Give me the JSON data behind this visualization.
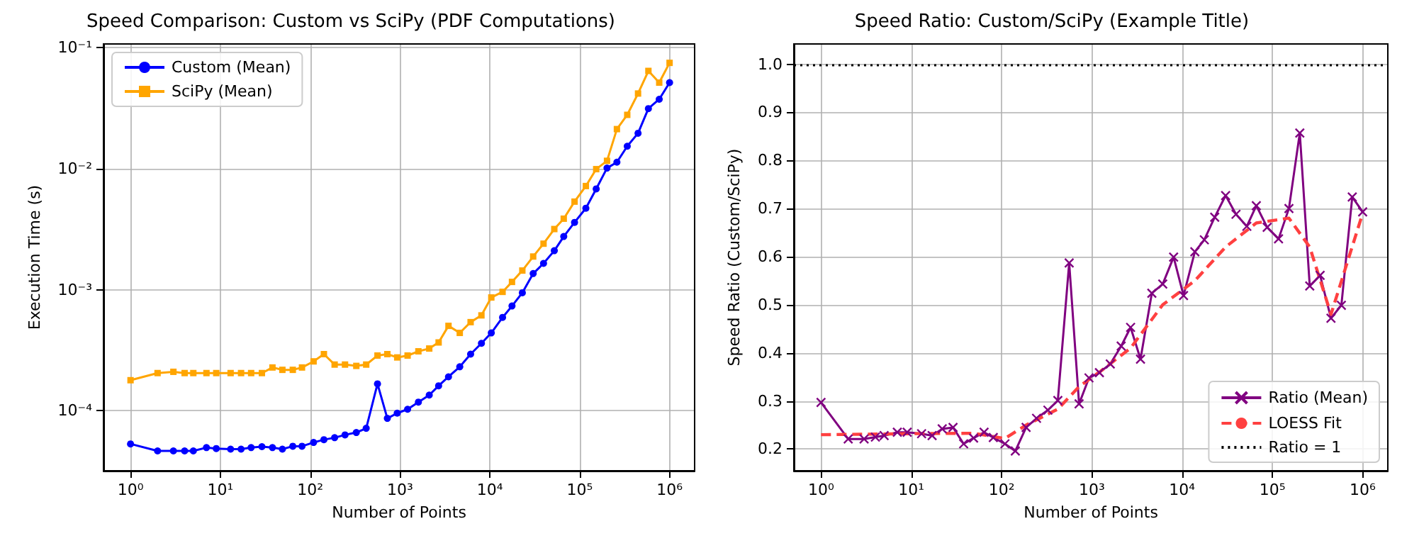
{
  "chart_data": [
    {
      "type": "line",
      "title": "Speed Comparison: Custom vs SciPy (PDF Computations)",
      "xlabel": "Number of Points",
      "ylabel": "Execution Time (s)",
      "log": "xy",
      "grid": true,
      "legend": "top left",
      "xlim": [
        0.5,
        1900000
      ],
      "xticks": [
        {
          "value": 1,
          "label": "10⁰"
        },
        {
          "value": 10,
          "label": "10¹"
        },
        {
          "value": 100,
          "label": "10²"
        },
        {
          "value": 1000,
          "label": "10³"
        },
        {
          "value": 10000,
          "label": "10⁴"
        },
        {
          "value": 100000,
          "label": "10⁵"
        },
        {
          "value": 1000000,
          "label": "10⁶"
        }
      ],
      "ylim": [
        3.2e-05,
        0.107
      ],
      "yticks": [
        {
          "value": 0.0001,
          "label": "10⁻⁴"
        },
        {
          "value": 0.001,
          "label": "10⁻³"
        },
        {
          "value": 0.01,
          "label": "10⁻²"
        },
        {
          "value": 0.1,
          "label": "10⁻¹"
        }
      ],
      "x": [
        1,
        2,
        3,
        4,
        5,
        7,
        9,
        13,
        17,
        22,
        29,
        38,
        49,
        64,
        81,
        109,
        142,
        187,
        244,
        326,
        420,
        561,
        722,
        930,
        1213,
        1600,
        2113,
        2687,
        3460,
        4620,
        6100,
        8050,
        10370,
        13840,
        17620,
        22970,
        30330,
        39540,
        52120,
        66370,
        87540,
        117000,
        152500,
        201200,
        259300,
        338000,
        445700,
        581000,
        767000,
        1000000
      ],
      "series": [
        {
          "name": "Custom (Mean)",
          "color": "#0000ff",
          "marker": "circle",
          "line_style": "solid",
          "values": [
            5.33e-05,
            4.67e-05,
            4.67e-05,
            4.67e-05,
            4.67e-05,
            4.97e-05,
            4.88e-05,
            4.83e-05,
            4.83e-05,
            4.97e-05,
            5.06e-05,
            4.97e-05,
            4.83e-05,
            5.1e-05,
            5.1e-05,
            5.48e-05,
            5.78e-05,
            6e-05,
            6.33e-05,
            6.62e-05,
            7.18e-05,
            0.000167,
            8.67e-05,
            9.57e-05,
            0.000103,
            0.000118,
            0.000135,
            0.000161,
            0.000191,
            0.000231,
            0.000294,
            0.000361,
            0.00044,
            0.000591,
            0.000734,
            0.000944,
            0.00136,
            0.00165,
            0.0021,
            0.00275,
            0.0036,
            0.00471,
            0.0068,
            0.0101,
            0.0113,
            0.0153,
            0.0196,
            0.0313,
            0.0374,
            0.0513
          ]
        },
        {
          "name": "SciPy (Mean)",
          "color": "#ffa500",
          "marker": "square",
          "line_style": "solid",
          "values": [
            0.000179,
            0.000205,
            0.00021,
            0.000205,
            0.000205,
            0.000205,
            0.000205,
            0.000205,
            0.000205,
            0.000205,
            0.000205,
            0.000228,
            0.000218,
            0.000218,
            0.000228,
            0.000256,
            0.000294,
            0.000241,
            0.000241,
            0.000235,
            0.000241,
            0.000286,
            0.000294,
            0.000276,
            0.000286,
            0.00031,
            0.000327,
            0.000367,
            0.000503,
            0.00044,
            0.00054,
            0.000614,
            0.000863,
            0.00096,
            0.00116,
            0.00144,
            0.00188,
            0.0024,
            0.00317,
            0.00386,
            0.00534,
            0.00718,
            0.0099,
            0.0116,
            0.0212,
            0.0278,
            0.0417,
            0.0641,
            0.0513,
            0.0747
          ]
        }
      ]
    },
    {
      "type": "line",
      "title": "Speed Ratio: Custom/SciPy (Example Title)",
      "xlabel": "Number of Points",
      "ylabel": "Speed Ratio (Custom/SciPy)",
      "log": "x",
      "grid": true,
      "legend": "bottom right",
      "xlim": [
        0.5,
        1900000
      ],
      "xticks": [
        {
          "value": 1,
          "label": "10⁰"
        },
        {
          "value": 10,
          "label": "10¹"
        },
        {
          "value": 100,
          "label": "10²"
        },
        {
          "value": 1000,
          "label": "10³"
        },
        {
          "value": 10000,
          "label": "10⁴"
        },
        {
          "value": 100000,
          "label": "10⁵"
        },
        {
          "value": 1000000,
          "label": "10⁶"
        }
      ],
      "ylim": [
        0.155,
        1.042
      ],
      "yticks": [
        0.2,
        0.3,
        0.4,
        0.5,
        0.6,
        0.7,
        0.8,
        0.9,
        {
          "value": 1,
          "label": "1.0"
        }
      ],
      "x": [
        1,
        2,
        3,
        4,
        5,
        7,
        9,
        13,
        17,
        22,
        29,
        38,
        49,
        64,
        81,
        109,
        142,
        187,
        244,
        326,
        420,
        561,
        722,
        930,
        1213,
        1600,
        2113,
        2687,
        3460,
        4620,
        6100,
        8050,
        10370,
        13840,
        17620,
        22970,
        30330,
        39540,
        52120,
        66370,
        87540,
        117000,
        152500,
        201200,
        259300,
        338000,
        445700,
        581000,
        767000,
        1000000
      ],
      "series": [
        {
          "name": "Ratio (Mean)",
          "color": "#800080",
          "marker": "cross",
          "line_style": "solid",
          "values": [
            0.297,
            0.221,
            0.221,
            0.225,
            0.228,
            0.235,
            0.235,
            0.232,
            0.228,
            0.242,
            0.245,
            0.211,
            0.223,
            0.235,
            0.224,
            0.211,
            0.196,
            0.245,
            0.264,
            0.281,
            0.301,
            0.587,
            0.294,
            0.348,
            0.359,
            0.377,
            0.414,
            0.453,
            0.387,
            0.524,
            0.543,
            0.599,
            0.519,
            0.61,
            0.635,
            0.682,
            0.727,
            0.688,
            0.663,
            0.706,
            0.661,
            0.637,
            0.7,
            0.857,
            0.539,
            0.561,
            0.472,
            0.499,
            0.724,
            0.693
          ]
        },
        {
          "name": "LOESS Fit",
          "color": "#ff4040",
          "marker": "none",
          "line_style": "dashed",
          "x": [
            1,
            9,
            49,
            109,
            187,
            420,
            722,
            1213,
            2687,
            6100,
            13840,
            30330,
            66370,
            152500,
            259300,
            445700,
            1000000
          ],
          "values": [
            0.23,
            0.232,
            0.233,
            0.222,
            0.25,
            0.283,
            0.33,
            0.36,
            0.41,
            0.5,
            0.55,
            0.62,
            0.67,
            0.68,
            0.62,
            0.48,
            0.69
          ]
        }
      ],
      "ref_lines": [
        {
          "axis": "y",
          "value": 1.0,
          "label": "Ratio = 1",
          "color": "#000000",
          "line_style": "dotted"
        }
      ]
    }
  ]
}
